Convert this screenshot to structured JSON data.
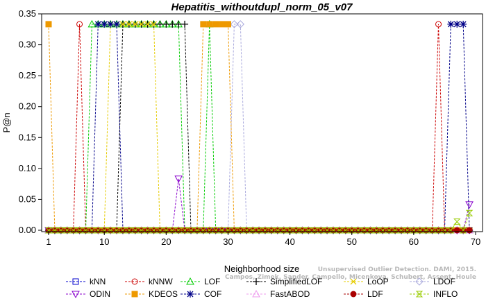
{
  "chart_data": {
    "type": "line",
    "title": "Hepatitis_withoutdupl_norm_05_v07",
    "xlabel": "Neighborhood size",
    "ylabel": "P@n",
    "xlim": [
      0,
      70
    ],
    "ylim": [
      0,
      0.35
    ],
    "x_ticks": [
      1,
      10,
      20,
      30,
      40,
      50,
      60,
      70
    ],
    "y_ticks": [
      0.0,
      0.05,
      0.1,
      0.15,
      0.2,
      0.25,
      0.3,
      0.35
    ],
    "y_tick_labels": [
      "0.00",
      "0.05",
      "0.10",
      "0.15",
      "0.20",
      "0.25",
      "0.30",
      "0.35"
    ],
    "grid": false,
    "legend_position": "bottom",
    "credit_lines": [
      "Unsupervised Outlier Detection. DAMI, 2015.",
      "Campos, Zimek, Sander, Campello, Micenkova, Schubert, Assent, Houle"
    ],
    "series": [
      {
        "name": "kNN",
        "color": "#0000cc",
        "marker": "square",
        "high": [],
        "low_value": 0.0
      },
      {
        "name": "kNNW",
        "color": "#cc0000",
        "marker": "circle",
        "high": [
          [
            6,
            0.3333
          ],
          [
            64,
            0.3333
          ]
        ],
        "low_value": 0.0
      },
      {
        "name": "LOF",
        "color": "#00cc00",
        "marker": "triangle",
        "high": [
          [
            8,
            0.3333
          ],
          [
            9,
            0.3333
          ],
          [
            10,
            0.3333
          ],
          [
            11,
            0.3333
          ],
          [
            12,
            0.3333
          ],
          [
            13,
            0.3333
          ],
          [
            14,
            0.3333
          ],
          [
            15,
            0.3333
          ],
          [
            16,
            0.3333
          ],
          [
            17,
            0.3333
          ],
          [
            18,
            0.3333
          ],
          [
            19,
            0.3333
          ],
          [
            20,
            0.3333
          ],
          [
            21,
            0.3333
          ],
          [
            22,
            0.3333
          ],
          [
            27,
            0.3333
          ]
        ],
        "low_value": 0.0
      },
      {
        "name": "SimplifiedLOF",
        "color": "#000000",
        "marker": "plus",
        "high": [
          [
            13,
            0.3333
          ],
          [
            14,
            0.3333
          ],
          [
            15,
            0.3333
          ],
          [
            16,
            0.3333
          ],
          [
            17,
            0.3333
          ],
          [
            18,
            0.3333
          ],
          [
            19,
            0.3333
          ],
          [
            20,
            0.3333
          ],
          [
            21,
            0.3333
          ],
          [
            22,
            0.3333
          ],
          [
            23,
            0.3333
          ]
        ],
        "low_value": 0.0
      },
      {
        "name": "LoOP",
        "color": "#e6cc00",
        "marker": "x",
        "high": [
          [
            11,
            0.3333
          ],
          [
            12,
            0.3333
          ],
          [
            13,
            0.3333
          ],
          [
            14,
            0.3333
          ],
          [
            15,
            0.3333
          ],
          [
            16,
            0.3333
          ],
          [
            17,
            0.3333
          ],
          [
            18,
            0.3333
          ]
        ],
        "low_value": 0.0
      },
      {
        "name": "LDOF",
        "color": "#aaaadd",
        "marker": "diamond",
        "high": [
          [
            31,
            0.3333
          ],
          [
            32,
            0.3333
          ]
        ],
        "low_value": 0.0
      },
      {
        "name": "ODIN",
        "color": "#8800cc",
        "marker": "triangle-down",
        "high": [
          [
            22,
            0.0833
          ],
          [
            69,
            0.0417
          ]
        ],
        "low_value": 0.0
      },
      {
        "name": "KDEOS",
        "color": "#ee9900",
        "marker": "square-filled",
        "high": [
          [
            1,
            0.3333
          ],
          [
            26,
            0.3333
          ],
          [
            27,
            0.3333
          ],
          [
            28,
            0.3333
          ],
          [
            29,
            0.3333
          ],
          [
            30,
            0.3333
          ]
        ],
        "low_value": 0.0
      },
      {
        "name": "COF",
        "color": "#000088",
        "marker": "asterisk",
        "high": [
          [
            9,
            0.3333
          ],
          [
            10,
            0.3333
          ],
          [
            11,
            0.3333
          ],
          [
            12,
            0.3333
          ],
          [
            66,
            0.3333
          ],
          [
            67,
            0.3333
          ],
          [
            68,
            0.3333
          ]
        ],
        "low_value": 0.0
      },
      {
        "name": "FastABOD",
        "color": "#ee99ee",
        "marker": "triangle",
        "high": [],
        "low_value": 0.0
      },
      {
        "name": "LDF",
        "color": "#aa0000",
        "marker": "circle-filled",
        "high": [],
        "low_value": 0.0
      },
      {
        "name": "INFLO",
        "color": "#99cc00",
        "marker": "hourglass",
        "high": [
          [
            67,
            0.0139
          ],
          [
            69,
            0.0278
          ]
        ],
        "low_value": 0.0
      }
    ]
  }
}
